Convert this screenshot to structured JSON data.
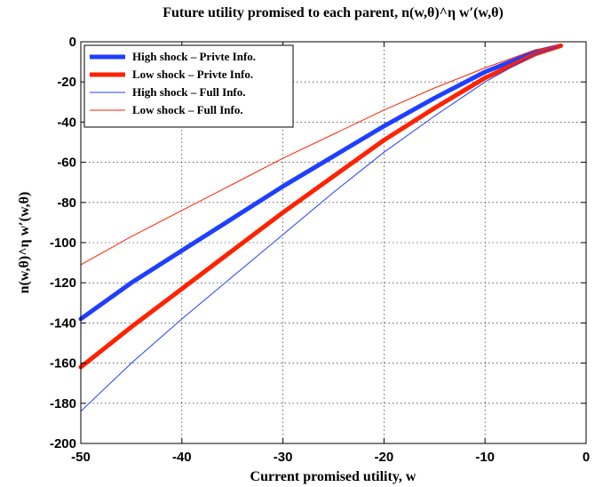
{
  "chart_data": {
    "type": "line",
    "title": "Future utility promised to each parent, n(w,θ)^η w′(w,θ)",
    "xlabel": "Current promised utility, w",
    "ylabel": "n(w,θ)^η w′(w,θ)",
    "xlim": [
      -50,
      0
    ],
    "ylim": [
      -200,
      0
    ],
    "xticks": [
      -50,
      -40,
      -30,
      -20,
      -10,
      0
    ],
    "yticks": [
      0,
      -20,
      -40,
      -60,
      -80,
      -100,
      -120,
      -140,
      -160,
      -180,
      -200
    ],
    "grid": true,
    "legend_position": "top-left",
    "series": [
      {
        "name": "High shock – Privte Info.",
        "color": "#1f3fff",
        "weight": "thick",
        "x": [
          -50,
          -45,
          -40,
          -35,
          -30,
          -25,
          -20,
          -15,
          -10,
          -5,
          -2.5
        ],
        "y": [
          -138,
          -120,
          -104,
          -88,
          -72,
          -57,
          -42,
          -28,
          -15,
          -5,
          -2
        ]
      },
      {
        "name": "Low shock – Privte Info.",
        "color": "#ff2200",
        "weight": "thick",
        "x": [
          -50,
          -45,
          -40,
          -35,
          -30,
          -25,
          -20,
          -15,
          -10,
          -5,
          -2.5
        ],
        "y": [
          -162,
          -142,
          -123,
          -104,
          -85,
          -67,
          -49,
          -33,
          -18,
          -6,
          -2
        ]
      },
      {
        "name": "High shock – Full Info.",
        "color": "#1f3fff",
        "weight": "thin",
        "x": [
          -50,
          -45,
          -40,
          -35,
          -30,
          -25,
          -20,
          -15,
          -10,
          -5,
          -2.5
        ],
        "y": [
          -184,
          -160,
          -138,
          -117,
          -96,
          -75,
          -55,
          -37,
          -20,
          -6,
          -2
        ]
      },
      {
        "name": "Low shock – Full Info.",
        "color": "#ff2200",
        "weight": "thin",
        "x": [
          -50,
          -45,
          -40,
          -35,
          -30,
          -25,
          -20,
          -15,
          -10,
          -5,
          -2.5
        ],
        "y": [
          -111,
          -97,
          -84,
          -71,
          -58,
          -46,
          -34,
          -23,
          -13,
          -4,
          -2
        ]
      }
    ]
  }
}
